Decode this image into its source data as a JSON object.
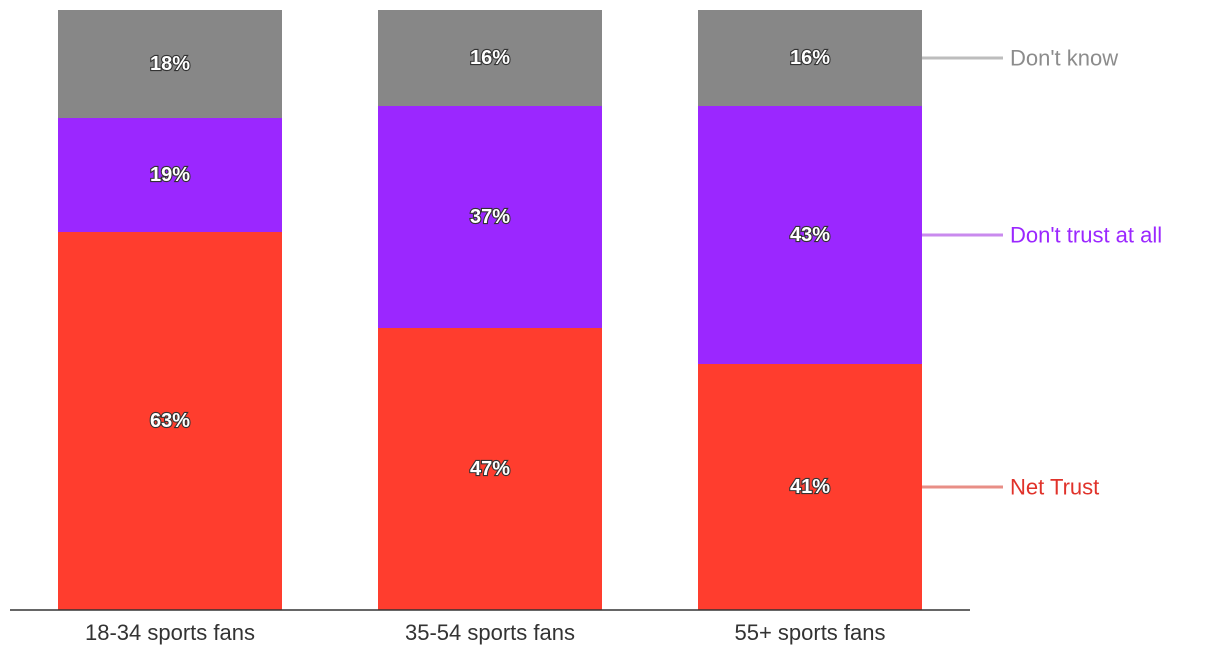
{
  "chart_data": {
    "type": "bar",
    "stacked": true,
    "categories": [
      "18-34 sports fans",
      "35-54 sports fans",
      "55+ sports fans"
    ],
    "series": [
      {
        "name": "Net Trust",
        "values": [
          63,
          47,
          41
        ],
        "labels": [
          "63%",
          "47%",
          "41%"
        ],
        "color": "#ff3d2e",
        "legend_color": "#e88e86"
      },
      {
        "name": "Don't trust at all",
        "values": [
          19,
          37,
          43
        ],
        "labels": [
          "19%",
          "37%",
          "43%"
        ],
        "color": "#9b27ff",
        "legend_color": "#c98aee"
      },
      {
        "name": "Don't know",
        "values": [
          18,
          16,
          16
        ],
        "labels": [
          "18%",
          "16%",
          "16%"
        ],
        "color": "#878787",
        "legend_color": "#bdbdbd"
      }
    ],
    "legend_text_colors": [
      "#e0322a",
      "#9b27ff",
      "#8c8c8c"
    ],
    "ylim": [
      0,
      100
    ],
    "legend_placement": "right",
    "grid": false
  }
}
